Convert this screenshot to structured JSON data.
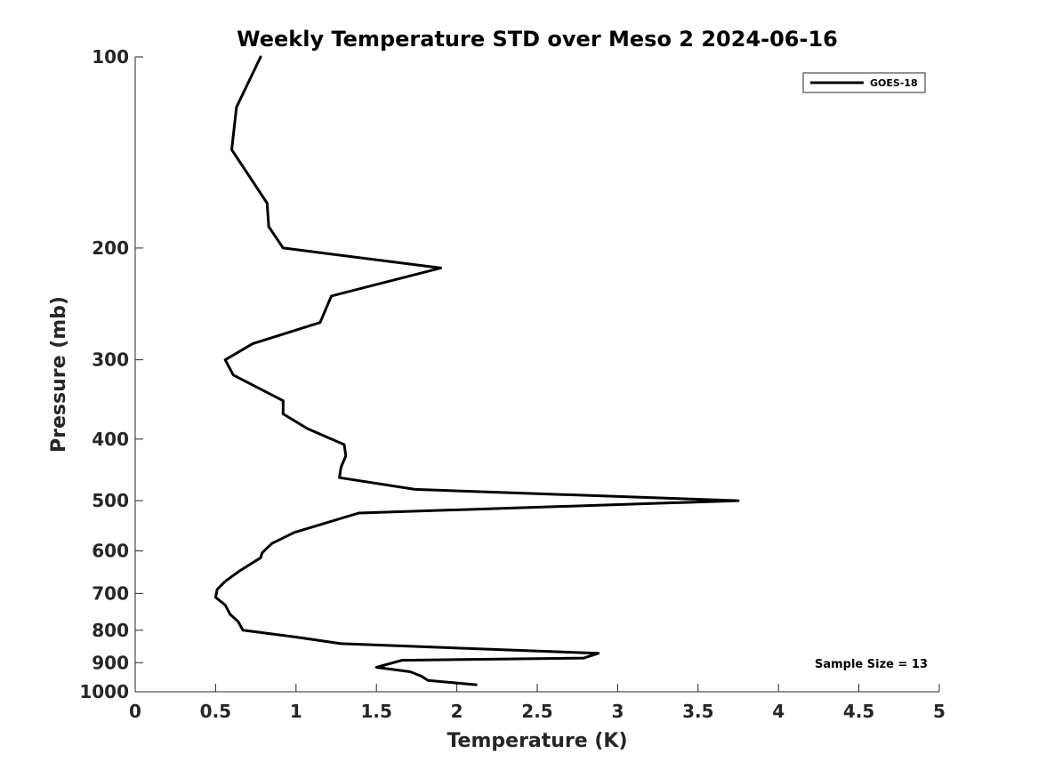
{
  "chart_data": {
    "type": "line",
    "title": "Weekly Temperature STD over Meso 2 2024-06-16",
    "xlabel": "Temperature (K)",
    "ylabel": "Pressure (mb)",
    "xlim": [
      0,
      5
    ],
    "ylim": [
      100,
      1000
    ],
    "y_scale": "log",
    "y_reversed": true,
    "x_ticks": [
      0,
      0.5,
      1,
      1.5,
      2,
      2.5,
      3,
      3.5,
      4,
      4.5,
      5
    ],
    "x_tick_labels": [
      "0",
      "0.5",
      "1",
      "1.5",
      "2",
      "2.5",
      "3",
      "3.5",
      "4",
      "4.5",
      "5"
    ],
    "y_ticks": [
      100,
      200,
      300,
      400,
      500,
      600,
      700,
      800,
      900,
      1000
    ],
    "y_tick_labels": [
      "100",
      "200",
      "300",
      "400",
      "500",
      "600",
      "700",
      "800",
      "900",
      "1000"
    ],
    "legend_position": "top-right",
    "grid": false,
    "annotation": "Sample Size = 13",
    "series": [
      {
        "name": "GOES-18",
        "color": "#000000",
        "x": [
          0.78,
          0.63,
          0.6,
          0.82,
          0.83,
          0.92,
          1.9,
          1.22,
          1.15,
          0.73,
          0.56,
          0.61,
          0.92,
          0.92,
          1.07,
          1.3,
          1.31,
          1.28,
          1.27,
          1.74,
          3.75,
          1.39,
          0.99,
          0.85,
          0.79,
          0.78,
          0.65,
          0.56,
          0.51,
          0.5,
          0.56,
          0.59,
          0.64,
          0.67,
          1.0,
          1.28,
          2.88,
          2.79,
          1.66,
          1.5,
          1.71,
          1.78,
          1.82,
          2.12
        ],
        "y": [
          100,
          120,
          140,
          170,
          185,
          200,
          215,
          238,
          262,
          283,
          300,
          317,
          348,
          365,
          385,
          408,
          425,
          443,
          460,
          480,
          500,
          523,
          561,
          584,
          604,
          615,
          645,
          670,
          690,
          710,
          730,
          755,
          775,
          800,
          820,
          840,
          870,
          885,
          892,
          915,
          930,
          945,
          960,
          975
        ]
      }
    ]
  }
}
